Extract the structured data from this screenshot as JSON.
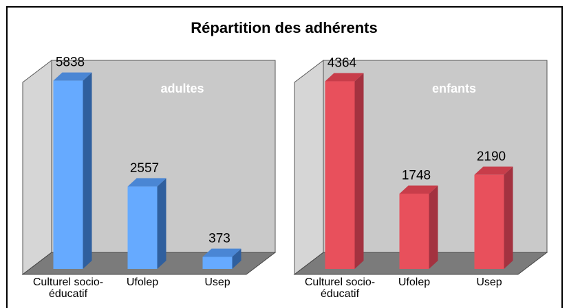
{
  "title": "Répartition des adhérents",
  "chart_data": [
    {
      "type": "bar",
      "title": "adultes",
      "categories": [
        "Culturel socio-éducatif",
        "Ufolep",
        "Usep"
      ],
      "values": [
        5838,
        2557,
        373
      ],
      "ylim": [
        0,
        6000
      ],
      "color": "#66aaff",
      "side_color": "#2f5f9e",
      "top_color": "#4a86d4"
    },
    {
      "type": "bar",
      "title": "enfants",
      "categories": [
        "Culturel socio-éducatif",
        "Ufolep",
        "Usep"
      ],
      "values": [
        4364,
        1748,
        2190
      ],
      "ylim": [
        0,
        4500
      ],
      "color": "#e8505c",
      "side_color": "#a33240",
      "top_color": "#c83d4a"
    }
  ]
}
